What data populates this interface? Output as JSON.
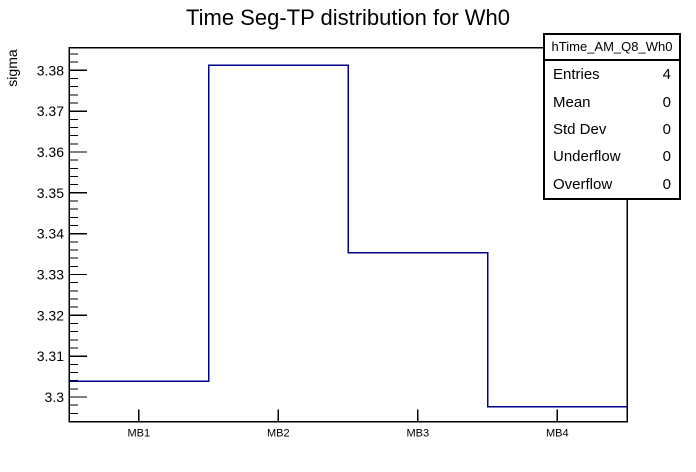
{
  "chart_data": {
    "type": "step-histogram",
    "title": "Time Seg-TP distribution for Wh0",
    "ylabel": "sigma",
    "xlabel": "",
    "categories": [
      "MB1",
      "MB2",
      "MB3",
      "MB4"
    ],
    "values": [
      3.3039,
      3.3812,
      3.3353,
      3.2976
    ],
    "ylim": [
      3.294,
      3.3856
    ],
    "y_major_ticks": [
      "3.3",
      "3.31",
      "3.32",
      "3.33",
      "3.34",
      "3.35",
      "3.36",
      "3.37",
      "3.38"
    ],
    "y_minor_step": 0.002,
    "grid": false,
    "legend": "none",
    "line_color": "#00008b",
    "frame_color": "#000000",
    "text_color": "#000000"
  },
  "stats_box": {
    "header": "hTime_AM_Q8_Wh0",
    "rows": [
      {
        "label": "Entries",
        "value": "4"
      },
      {
        "label": "Mean",
        "value": "0"
      },
      {
        "label": "Std Dev",
        "value": "0"
      },
      {
        "label": "Underflow",
        "value": "0"
      },
      {
        "label": "Overflow",
        "value": "0"
      }
    ]
  }
}
